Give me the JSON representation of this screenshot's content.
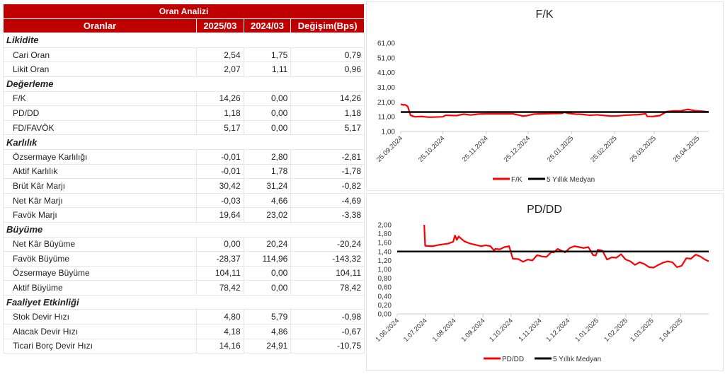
{
  "table": {
    "title": "Oran Analizi",
    "headers": [
      "Oranlar",
      "2025/03",
      "2024/03",
      "Değişim(Bps)"
    ],
    "sections": [
      {
        "name": "Likidite",
        "rows": [
          [
            "Cari Oran",
            "2,54",
            "1,75",
            "0,79"
          ],
          [
            "Likit Oran",
            "2,07",
            "1,11",
            "0,96"
          ]
        ]
      },
      {
        "name": "Değerleme",
        "rows": [
          [
            "F/K",
            "14,26",
            "0,00",
            "14,26"
          ],
          [
            "PD/DD",
            "1,18",
            "0,00",
            "1,18"
          ],
          [
            "FD/FAVÖK",
            "5,17",
            "0,00",
            "5,17"
          ]
        ]
      },
      {
        "name": "Karlılık",
        "rows": [
          [
            "Özsermaye Karlılığı",
            "-0,01",
            "2,80",
            "-2,81"
          ],
          [
            "Aktif Karlılık",
            "-0,01",
            "1,78",
            "-1,78"
          ],
          [
            "Brüt Kâr Marjı",
            "30,42",
            "31,24",
            "-0,82"
          ],
          [
            "Net Kâr Marjı",
            "-0,03",
            "4,66",
            "-4,69"
          ],
          [
            "Favök Marjı",
            "19,64",
            "23,02",
            "-3,38"
          ]
        ]
      },
      {
        "name": "Büyüme",
        "rows": [
          [
            "Net Kâr Büyüme",
            "0,00",
            "20,24",
            "-20,24"
          ],
          [
            "Favök Büyüme",
            "-28,37",
            "114,96",
            "-143,32"
          ],
          [
            "Özsermaye Büyüme",
            "104,11",
            "0,00",
            "104,11"
          ],
          [
            "Aktif Büyüme",
            "78,42",
            "0,00",
            "78,42"
          ]
        ]
      },
      {
        "name": "Faaliyet Etkinliği",
        "rows": [
          [
            "Stok Devir Hızı",
            "4,80",
            "5,79",
            "-0,98"
          ],
          [
            "Alacak Devir Hızı",
            "4,18",
            "4,86",
            "-0,67"
          ],
          [
            "Ticari Borç Devir Hızı",
            "14,16",
            "24,91",
            "-10,75"
          ]
        ]
      }
    ]
  },
  "chart_data": [
    {
      "type": "line",
      "title": "F/K",
      "ylim": [
        1,
        61
      ],
      "yticks": [
        "1,00",
        "11,00",
        "21,00",
        "31,00",
        "41,00",
        "51,00",
        "61,00"
      ],
      "xlim": [
        0,
        220
      ],
      "xticks": [
        {
          "d": 0,
          "label": "25.09.2024"
        },
        {
          "d": 30,
          "label": "25.10.2024"
        },
        {
          "d": 61,
          "label": "25.11.2024"
        },
        {
          "d": 91,
          "label": "25.12.2024"
        },
        {
          "d": 122,
          "label": "25.01.2025"
        },
        {
          "d": 153,
          "label": "25.02.2025"
        },
        {
          "d": 181,
          "label": "25.03.2025"
        },
        {
          "d": 212,
          "label": "25.04.2025"
        }
      ],
      "series": [
        {
          "name": "F/K",
          "color": "#ff0000",
          "x": [
            0,
            2,
            3,
            5,
            7,
            10,
            15,
            20,
            25,
            30,
            32,
            40,
            45,
            50,
            55,
            60,
            65,
            70,
            75,
            80,
            85,
            87,
            90,
            95,
            100,
            110,
            115,
            117,
            120,
            125,
            130,
            135,
            140,
            150,
            155,
            160,
            170,
            175,
            176,
            180,
            185,
            190,
            195,
            200,
            205,
            210,
            215,
            220
          ],
          "y": [
            19.5,
            19,
            19.2,
            18,
            12,
            11,
            11.2,
            10.7,
            10.8,
            11,
            12,
            11.8,
            12.8,
            12.2,
            12.8,
            13,
            13,
            13,
            13,
            13,
            12,
            11.5,
            11.7,
            12.8,
            13,
            13.2,
            13.3,
            14,
            13.3,
            12.8,
            12.6,
            12,
            12.3,
            11.5,
            11.6,
            12,
            12.5,
            13,
            11.3,
            11.2,
            11.8,
            14.5,
            15,
            15,
            16,
            15.2,
            14.8,
            14.3
          ]
        },
        {
          "name": "5 Yıllık Medyan",
          "color": "#000000",
          "x": [
            0,
            220
          ],
          "y": [
            14.2,
            14.2
          ]
        }
      ],
      "legend": "bottom"
    },
    {
      "type": "line",
      "title": "PD/DD",
      "ylim": [
        0,
        2
      ],
      "yticks": [
        "0,00",
        "0,20",
        "0,40",
        "0,60",
        "0,80",
        "1,00",
        "1,20",
        "1,40",
        "1,60",
        "1,80",
        "2,00"
      ],
      "xlim": [
        0,
        334
      ],
      "xticks": [
        {
          "d": 0,
          "label": "1.06.2024"
        },
        {
          "d": 30,
          "label": "1.07.2024"
        },
        {
          "d": 61,
          "label": "1.08.2024"
        },
        {
          "d": 92,
          "label": "1.09.2024"
        },
        {
          "d": 122,
          "label": "1.10.2024"
        },
        {
          "d": 153,
          "label": "1.11.2024"
        },
        {
          "d": 183,
          "label": "1.12.2024"
        },
        {
          "d": 214,
          "label": "1.01.2025"
        },
        {
          "d": 245,
          "label": "1.02.2025"
        },
        {
          "d": 273,
          "label": "1.03.2025"
        },
        {
          "d": 304,
          "label": "1.04.2025"
        }
      ],
      "series": [
        {
          "name": "PD/DD",
          "color": "#ff0000",
          "x": [
            29,
            30,
            38,
            45,
            55,
            60,
            62,
            64,
            66,
            68,
            72,
            78,
            90,
            95,
            100,
            104,
            105,
            110,
            115,
            120,
            124,
            130,
            135,
            140,
            145,
            150,
            155,
            160,
            165,
            168,
            172,
            180,
            185,
            190,
            195,
            200,
            205,
            210,
            213,
            215,
            220,
            225,
            230,
            235,
            240,
            245,
            250,
            255,
            260,
            265,
            270,
            275,
            280,
            285,
            290,
            295,
            300,
            305,
            310,
            315,
            320,
            325,
            330,
            334
          ],
          "y": [
            2.0,
            1.53,
            1.52,
            1.55,
            1.58,
            1.62,
            1.76,
            1.66,
            1.74,
            1.7,
            1.63,
            1.58,
            1.52,
            1.54,
            1.52,
            1.42,
            1.46,
            1.45,
            1.5,
            1.52,
            1.24,
            1.23,
            1.17,
            1.22,
            1.2,
            1.32,
            1.29,
            1.28,
            1.38,
            1.38,
            1.46,
            1.38,
            1.48,
            1.52,
            1.5,
            1.48,
            1.5,
            1.32,
            1.31,
            1.44,
            1.42,
            1.22,
            1.27,
            1.26,
            1.34,
            1.22,
            1.18,
            1.1,
            1.16,
            1.12,
            1.05,
            1.04,
            1.1,
            1.15,
            1.18,
            1.16,
            1.05,
            1.08,
            1.25,
            1.24,
            1.33,
            1.29,
            1.22,
            1.18
          ]
        },
        {
          "name": "5 Yıllık Medyan",
          "color": "#000000",
          "x": [
            0,
            334
          ],
          "y": [
            1.4,
            1.4
          ]
        }
      ],
      "legend": "bottom"
    }
  ]
}
